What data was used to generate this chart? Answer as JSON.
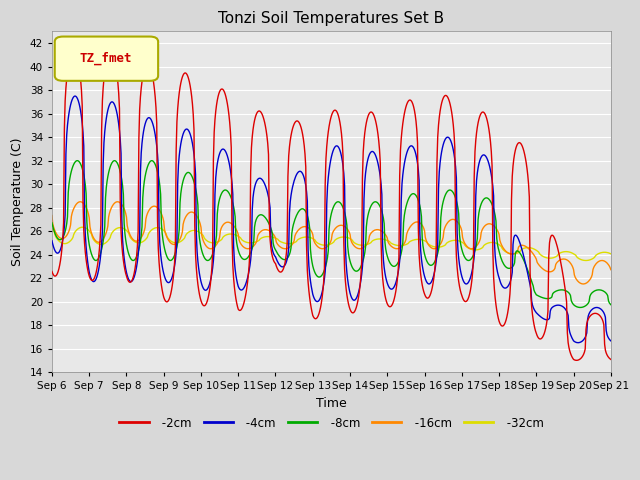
{
  "title": "Tonzi Soil Temperatures Set B",
  "xlabel": "Time",
  "ylabel": "Soil Temperature (C)",
  "ylim": [
    14,
    43
  ],
  "yticks": [
    14,
    16,
    18,
    20,
    22,
    24,
    26,
    28,
    30,
    32,
    34,
    36,
    38,
    40,
    42
  ],
  "bg_color": "#d8d8d8",
  "plot_bg_color": "#e8e8e8",
  "line_colors": {
    "-2cm": "#dd0000",
    "-4cm": "#0000cc",
    "-8cm": "#00aa00",
    "-16cm": "#ff8800",
    "-32cm": "#dddd00"
  },
  "legend_label": "TZ_fmet",
  "legend_bg": "#ffffcc",
  "legend_border": "#aaaa00",
  "n_days": 15,
  "start_day": 6,
  "peaks_2cm": [
    41.1,
    41.5,
    41.0,
    39.7,
    39.3,
    37.2,
    35.5,
    35.3,
    37.0,
    35.5,
    38.3,
    37.0,
    35.5,
    32.0,
    19.0
  ],
  "troughs_2cm": [
    22.2,
    21.8,
    21.8,
    20.0,
    19.7,
    19.0,
    23.0,
    18.5,
    19.0,
    19.5,
    20.3,
    20.2,
    18.0,
    17.0,
    15.0
  ],
  "peaks_4cm": [
    37.5,
    37.5,
    36.7,
    35.0,
    34.5,
    32.0,
    29.5,
    32.0,
    34.0,
    32.0,
    34.0,
    34.0,
    31.5,
    20.0,
    19.5
  ],
  "troughs_4cm": [
    24.5,
    21.7,
    21.7,
    21.7,
    21.0,
    20.7,
    23.5,
    20.0,
    20.0,
    21.0,
    21.5,
    21.5,
    21.5,
    19.0,
    16.5
  ],
  "peaks_8cm": [
    32.0,
    32.0,
    32.0,
    32.0,
    30.5,
    29.0,
    26.5,
    28.5,
    28.5,
    28.5,
    29.5,
    29.5,
    28.5,
    21.0,
    21.0
  ],
  "troughs_8cm": [
    25.7,
    23.5,
    23.5,
    23.5,
    23.5,
    23.5,
    24.0,
    22.0,
    22.5,
    23.0,
    23.0,
    23.5,
    23.5,
    20.5,
    19.5
  ],
  "peaks_16cm": [
    28.5,
    28.5,
    28.5,
    28.0,
    27.5,
    26.5,
    26.0,
    26.5,
    26.5,
    26.0,
    27.0,
    27.0,
    26.5,
    24.0,
    23.5
  ],
  "troughs_16cm": [
    25.5,
    25.0,
    25.2,
    25.0,
    24.5,
    24.5,
    24.5,
    24.5,
    24.5,
    24.5,
    24.5,
    24.5,
    24.5,
    23.0,
    21.5
  ],
  "peaks_32cm": [
    26.5,
    26.3,
    26.3,
    26.3,
    26.0,
    25.7,
    25.5,
    25.5,
    25.5,
    25.3,
    25.3,
    25.2,
    25.0,
    24.5,
    24.2
  ],
  "troughs_32cm": [
    25.0,
    24.8,
    25.0,
    25.0,
    25.0,
    25.0,
    25.0,
    24.8,
    24.8,
    24.8,
    24.7,
    24.5,
    24.2,
    23.8,
    23.5
  ]
}
